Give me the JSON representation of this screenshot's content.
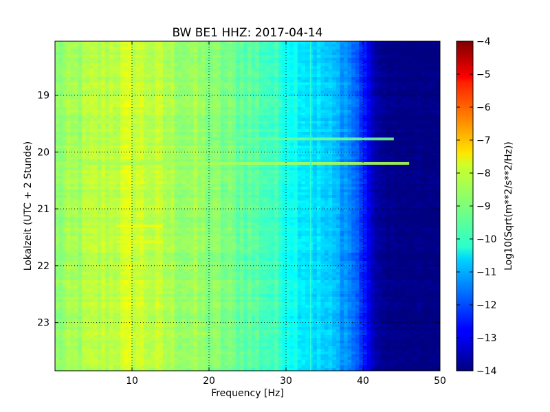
{
  "chart_data": {
    "type": "heatmap",
    "title": "BW BE1 HHZ: 2017-04-14",
    "xlabel": "Frequency [Hz]",
    "ylabel": "Lokalzeit (UTC + 2 Stunde)",
    "xlim": [
      0,
      50
    ],
    "ylim": [
      18.05,
      23.85
    ],
    "y_inverted": true,
    "x_ticks": [
      10,
      20,
      30,
      40,
      50
    ],
    "x_tick_labels": [
      "10",
      "20",
      "30",
      "40",
      "50"
    ],
    "y_ticks": [
      19,
      20,
      21,
      22,
      23
    ],
    "y_tick_labels": [
      "19",
      "20",
      "21",
      "22",
      "23"
    ],
    "grid": true,
    "grid_style": "dotted",
    "colormap": "jet",
    "colorbar": {
      "label": "Log10(Sqrt(m**2/s**2/Hz))",
      "range": [
        -14,
        -4
      ],
      "ticks": [
        -4,
        -5,
        -6,
        -7,
        -8,
        -9,
        -10,
        -11,
        -12,
        -13,
        -14
      ],
      "tick_labels": [
        "−4",
        "−5",
        "−6",
        "−7",
        "−8",
        "−9",
        "−10",
        "−11",
        "−12",
        "−13",
        "−14"
      ]
    },
    "spectral_profile": {
      "frequency_hz": [
        0,
        5,
        10,
        15,
        20,
        25,
        28,
        30,
        32,
        34,
        36,
        38,
        40,
        41,
        42,
        45,
        50
      ],
      "log10_amplitude": [
        -8.9,
        -8.5,
        -8.2,
        -8.6,
        -8.9,
        -9.3,
        -9.6,
        -9.9,
        -10.3,
        -10.6,
        -10.9,
        -11.3,
        -12.3,
        -13.2,
        -13.8,
        -14,
        -14
      ]
    },
    "features": [
      {
        "type": "horizontal_band",
        "time": 19.77,
        "freq_range": [
          20,
          44
        ],
        "value": -9.2
      },
      {
        "type": "horizontal_band",
        "time": 20.2,
        "freq_range": [
          0,
          46
        ],
        "value": -8.6
      },
      {
        "type": "horizontal_band",
        "time": 21.3,
        "freq_range": [
          8,
          14
        ],
        "value": -7.9
      },
      {
        "type": "horizontal_band",
        "time": 21.58,
        "freq_range": [
          8,
          14
        ],
        "value": -8.0
      },
      {
        "type": "vertical_line",
        "freq": 33.2,
        "time_range": [
          18.05,
          23.85
        ],
        "value": -9.8
      }
    ]
  }
}
